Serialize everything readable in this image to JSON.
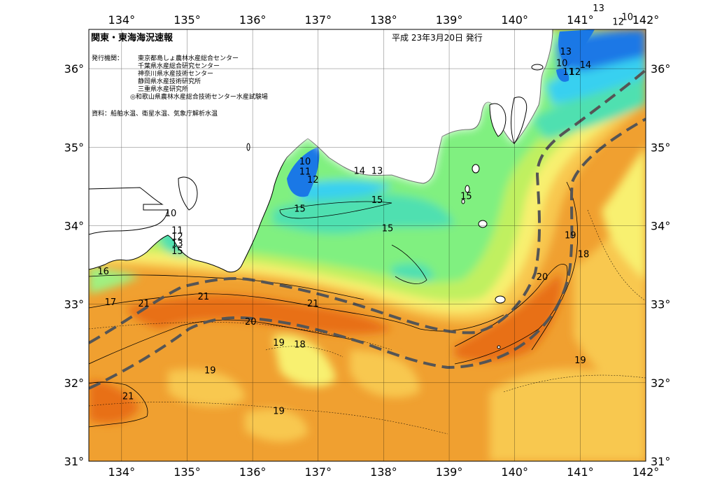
{
  "header": {
    "title": "関東・東海海況速報",
    "date": "平成 23年3月20日 発行",
    "issuer_label": "発行機関：",
    "issuers": [
      "東京都島しょ農林水産総合センター",
      "千葉県水産総合研究センター",
      "神奈川県水産技術センター",
      "静岡県水産技術研究所",
      "三重県水産研究所",
      "◎和歌山県農林水産総合技術センター水産試験場"
    ],
    "source": "資料：船舶水温、衛星水温、気象庁解析水温"
  },
  "axes": {
    "lon_labels": [
      "134°",
      "135°",
      "136°",
      "137°",
      "138°",
      "139°",
      "140°",
      "141°",
      "142°"
    ],
    "lat_labels": [
      "36°",
      "35°",
      "34°",
      "33°",
      "32°",
      "31°"
    ]
  },
  "colors": {
    "deep_blue": "#1a78e6",
    "cyan": "#38d0f0",
    "aqua_green": "#50e0b0",
    "light_green": "#80f080",
    "yellow_green": "#c0f060",
    "pale_yellow": "#f8f070",
    "light_orange": "#f8c850",
    "orange": "#f0a030",
    "dark_orange": "#e87018",
    "land": "#ffffff",
    "kuroshio_axis": "#555555"
  },
  "isotherms": [
    {
      "label": "13",
      "lon": 141.28,
      "lat": 36.73
    },
    {
      "label": "10",
      "lon": 141.72,
      "lat": 36.62
    },
    {
      "label": "12",
      "lon": 141.58,
      "lat": 36.56
    },
    {
      "label": "13",
      "lon": 140.78,
      "lat": 36.18
    },
    {
      "label": "10",
      "lon": 140.72,
      "lat": 36.03
    },
    {
      "label": "11",
      "lon": 140.82,
      "lat": 35.92
    },
    {
      "label": "12",
      "lon": 140.92,
      "lat": 35.92
    },
    {
      "label": "14",
      "lon": 141.08,
      "lat": 36.01
    },
    {
      "label": "10",
      "lon": 136.8,
      "lat": 34.78
    },
    {
      "label": "11",
      "lon": 136.8,
      "lat": 34.65
    },
    {
      "label": "12",
      "lon": 136.92,
      "lat": 34.55
    },
    {
      "label": "14",
      "lon": 137.63,
      "lat": 34.66
    },
    {
      "label": "13",
      "lon": 137.9,
      "lat": 34.66
    },
    {
      "label": "15",
      "lon": 137.9,
      "lat": 34.29
    },
    {
      "label": "15",
      "lon": 139.26,
      "lat": 34.34
    },
    {
      "label": "15",
      "lon": 136.72,
      "lat": 34.18
    },
    {
      "label": "15",
      "lon": 138.06,
      "lat": 33.93
    },
    {
      "label": "10",
      "lon": 134.75,
      "lat": 34.12
    },
    {
      "label": "11",
      "lon": 134.85,
      "lat": 33.9
    },
    {
      "label": "12",
      "lon": 134.85,
      "lat": 33.82
    },
    {
      "label": "13",
      "lon": 134.85,
      "lat": 33.73
    },
    {
      "label": "15",
      "lon": 134.85,
      "lat": 33.64
    },
    {
      "label": "16",
      "lon": 133.72,
      "lat": 33.38
    },
    {
      "label": "17",
      "lon": 133.83,
      "lat": 32.99
    },
    {
      "label": "21",
      "lon": 134.34,
      "lat": 32.97
    },
    {
      "label": "21",
      "lon": 135.25,
      "lat": 33.06
    },
    {
      "label": "21",
      "lon": 136.92,
      "lat": 32.97
    },
    {
      "label": "20",
      "lon": 135.97,
      "lat": 32.74
    },
    {
      "label": "19",
      "lon": 136.4,
      "lat": 32.47
    },
    {
      "label": "18",
      "lon": 136.72,
      "lat": 32.45
    },
    {
      "label": "19",
      "lon": 135.35,
      "lat": 32.12
    },
    {
      "label": "21",
      "lon": 134.1,
      "lat": 31.79
    },
    {
      "label": "19",
      "lon": 136.4,
      "lat": 31.6
    },
    {
      "label": "19",
      "lon": 140.85,
      "lat": 33.84
    },
    {
      "label": "18",
      "lon": 141.05,
      "lat": 33.6
    },
    {
      "label": "20",
      "lon": 140.42,
      "lat": 33.31
    },
    {
      "label": "19",
      "lon": 141.0,
      "lat": 32.25
    }
  ]
}
